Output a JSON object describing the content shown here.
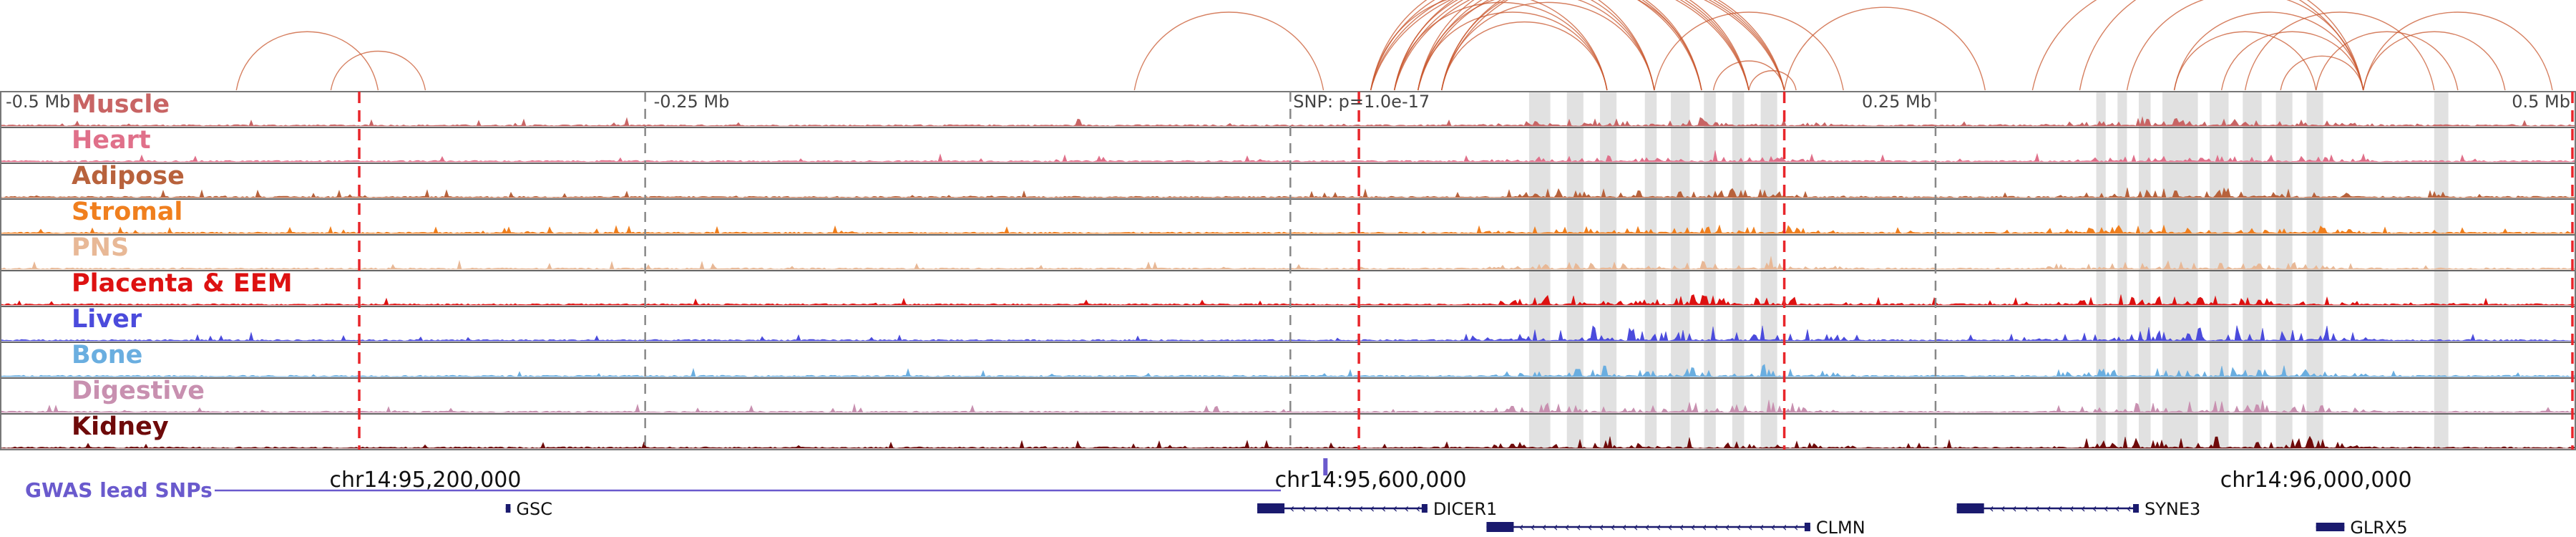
{
  "chart_data": {
    "type": "area",
    "title": "",
    "xaxis": {
      "chrom": "chr14",
      "range": [
        95020000,
        96110000
      ],
      "ticks": [
        {
          "value": 95200000,
          "label": "chr14:95,200,000"
        },
        {
          "value": 95600000,
          "label": "chr14:95,600,000"
        },
        {
          "value": 96000000,
          "label": "chr14:96,000,000"
        }
      ]
    },
    "relative_ticks": [
      {
        "value": 95020000,
        "label": "-0.5 Mb"
      },
      {
        "value": 95293000,
        "label": "-0.25 Mb"
      },
      {
        "value": 95566000,
        "label": "SNP: p=1.0e-17"
      },
      {
        "value": 95839000,
        "label": "0.25 Mb"
      },
      {
        "value": 96110000,
        "label": "0.5 Mb"
      }
    ],
    "lead_snp": {
      "value": 95566000,
      "pvalue": "1.0e-17"
    },
    "gwas_track": {
      "label": "GWAS lead SNPs",
      "color": "#6a5acd",
      "snps": [
        95566000
      ]
    },
    "red_dashed_lines": [
      95172000,
      95595000,
      95775000,
      96120000
    ],
    "gray_dashed_lines": [
      95293000,
      95566000,
      95839000
    ],
    "highlight_regions": [
      [
        95667000,
        95676000
      ],
      [
        95683000,
        95690000
      ],
      [
        95697000,
        95704000
      ],
      [
        95716000,
        95721000
      ],
      [
        95727000,
        95735000
      ],
      [
        95741000,
        95746000
      ],
      [
        95753000,
        95758000
      ],
      [
        95765000,
        95772000
      ],
      [
        95907000,
        95911000
      ],
      [
        95916000,
        95920000
      ],
      [
        95925000,
        95930000
      ],
      [
        95935000,
        95950000
      ],
      [
        95955000,
        95963000
      ],
      [
        95969000,
        95977000
      ],
      [
        95983000,
        95990000
      ],
      [
        95996000,
        96003000
      ],
      [
        96050000,
        96056000
      ]
    ],
    "series": [
      {
        "name": "Muscle",
        "color": "#c86464",
        "peak_scale": 0.35
      },
      {
        "name": "Heart",
        "color": "#e0708a",
        "peak_scale": 0.3
      },
      {
        "name": "Adipose",
        "color": "#b8623c",
        "peak_scale": 0.45
      },
      {
        "name": "Stromal",
        "color": "#f07f1e",
        "peak_scale": 0.4
      },
      {
        "name": "PNS",
        "color": "#e8b896",
        "peak_scale": 0.35
      },
      {
        "name": "Placenta & EEM",
        "color": "#dd1111",
        "peak_scale": 0.5
      },
      {
        "name": "Liver",
        "color": "#4b4bdc",
        "peak_scale": 0.8
      },
      {
        "name": "Bone",
        "color": "#6aaee0",
        "peak_scale": 0.5
      },
      {
        "name": "Digestive",
        "color": "#c890b0",
        "peak_scale": 0.55
      },
      {
        "name": "Kidney",
        "color": "#6e0a0a",
        "peak_scale": 0.55
      }
    ],
    "genes": [
      {
        "name": "GSC",
        "start": 95234000,
        "end": 95236000,
        "strand": "-",
        "row": 0
      },
      {
        "name": "DICER1",
        "start": 95552000,
        "end": 95624000,
        "strand": "-",
        "row": 0
      },
      {
        "name": "CLMN",
        "start": 95649000,
        "end": 95786000,
        "strand": "-",
        "row": 1
      },
      {
        "name": "SYNE3",
        "start": 95848000,
        "end": 95925000,
        "strand": "-",
        "row": 0
      },
      {
        "name": "GLRX5",
        "start": 96000000,
        "end": 96012000,
        "strand": "+",
        "row": 1
      }
    ],
    "loop_color": "#c8552c"
  }
}
